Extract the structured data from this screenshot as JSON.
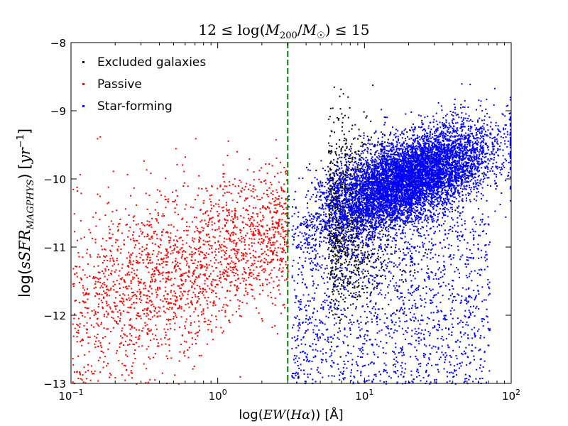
{
  "chart_data": {
    "type": "scatter",
    "title": "12 ≤ log(M200/M☉) ≤ 15",
    "title_parts": {
      "prefix": "12 ≤ log(",
      "m1": "M",
      "sub1": "200",
      "slash": "/",
      "m2": "M",
      "sub2": "☉",
      "suffix": ") ≤ 15"
    },
    "xlabel": "log(EW(Hα)) [Å]",
    "xlabel_parts": {
      "func": "log(",
      "var": "EW",
      "open": "(",
      "h": "Hα",
      "close": "))",
      "unit": "[Å]"
    },
    "ylabel": "log(sSFR_MAGPHYS) [yr^-1]",
    "ylabel_parts": {
      "func": "log(",
      "var": "sSFR",
      "sub": "MAGPHYS",
      "close": ")",
      "unit_open": "[",
      "unit_var": "yr",
      "unit_exp": "−1",
      "unit_close": "]"
    },
    "x_scale": "log",
    "xlim": [
      0.1,
      100
    ],
    "ylim": [
      -13,
      -8
    ],
    "x_ticks": [
      {
        "value": 0.1,
        "base": "10",
        "exp": "−1"
      },
      {
        "value": 1,
        "base": "10",
        "exp": "0"
      },
      {
        "value": 10,
        "base": "10",
        "exp": "1"
      },
      {
        "value": 100,
        "base": "10",
        "exp": "2"
      }
    ],
    "y_ticks": [
      {
        "value": -8,
        "label": "−8"
      },
      {
        "value": -9,
        "label": "−9"
      },
      {
        "value": -10,
        "label": "−10"
      },
      {
        "value": -11,
        "label": "−11"
      },
      {
        "value": -12,
        "label": "−12"
      },
      {
        "value": -13,
        "label": "−13"
      }
    ],
    "threshold_line": {
      "x": 3,
      "color": "#008000",
      "style": "dashed"
    },
    "legend_position": "top-left",
    "series": [
      {
        "name": "Excluded galaxies",
        "color": "#000000",
        "approx_count": 1400,
        "distribution": {
          "x_log10_range": [
            0.48,
            1.85
          ],
          "main_cluster_log_x_mean": 0.75,
          "main_cluster_log_x_sd": 0.28,
          "y_mean": -10.6,
          "y_sd": 0.7
        }
      },
      {
        "name": "Passive",
        "color": "#ff0000",
        "approx_count": 2200,
        "distribution": {
          "x_log10_range": [
            -1.0,
            0.477
          ],
          "y_center_at_log_x_-1": -11.9,
          "y_center_at_log_x_0.477": -10.75,
          "y_sd": 0.75
        }
      },
      {
        "name": "Star-forming",
        "color": "#0000ff",
        "approx_count": 9000,
        "distribution": {
          "x_log10_range": [
            0.477,
            2.0
          ],
          "main_cluster_log_x_mean": 1.3,
          "main_cluster_log_x_sd": 0.28,
          "y_center_at_log_x_0.5": -10.6,
          "y_slope_per_dex": 0.75,
          "y_sd": 0.3,
          "tail_fraction": 0.18,
          "tail_y_range": [
            -13,
            -10.5
          ]
        }
      }
    ],
    "sample_points": {
      "Excluded galaxies": [
        [
          3.2,
          -10.4
        ],
        [
          4.0,
          -10.7
        ],
        [
          5.5,
          -11.3
        ],
        [
          6.8,
          -12.6
        ],
        [
          8.0,
          -10.2
        ],
        [
          12,
          -10.0
        ],
        [
          20,
          -9.5
        ],
        [
          35,
          -9.2
        ],
        [
          45,
          -8.9
        ],
        [
          3.5,
          -12.9
        ]
      ],
      "Passive": [
        [
          0.13,
          -12.4
        ],
        [
          0.2,
          -11.9
        ],
        [
          0.35,
          -11.6
        ],
        [
          0.5,
          -11.3
        ],
        [
          0.8,
          -11.1
        ],
        [
          1.2,
          -10.9
        ],
        [
          1.7,
          -10.8
        ],
        [
          2.4,
          -10.7
        ],
        [
          0.15,
          -9.4
        ],
        [
          0.7,
          -9.4
        ]
      ],
      "Star-forming": [
        [
          3.3,
          -10.5
        ],
        [
          5,
          -10.3
        ],
        [
          8,
          -10.0
        ],
        [
          12,
          -9.8
        ],
        [
          18,
          -9.6
        ],
        [
          25,
          -9.4
        ],
        [
          40,
          -9.3
        ],
        [
          60,
          -9.1
        ],
        [
          90,
          -9.2
        ],
        [
          15,
          -12.0
        ]
      ]
    }
  }
}
